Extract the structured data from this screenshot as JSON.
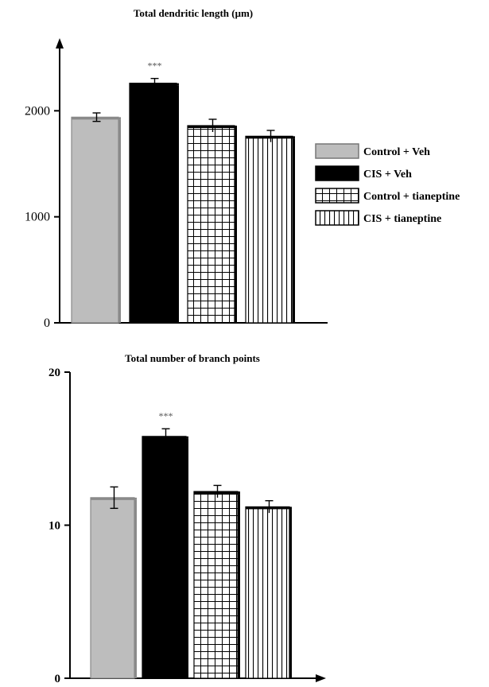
{
  "chart_data": [
    {
      "type": "bar",
      "title": "Total dendritic length (μm)",
      "categories": [
        "Control + Veh",
        "CIS + Veh",
        "Control + tianeptine",
        "CIS + tianeptine"
      ],
      "values": [
        1940,
        2260,
        1860,
        1760
      ],
      "errors": [
        40,
        45,
        60,
        55
      ],
      "annotations": [
        "",
        "***",
        "",
        ""
      ],
      "ylim": [
        0,
        2700
      ],
      "yticks": [
        0,
        1000,
        2000
      ],
      "xlabel": "",
      "ylabel": "",
      "legend": "right"
    },
    {
      "type": "bar",
      "title": "Total number of branch points",
      "categories": [
        "Control + Veh",
        "CIS + Veh",
        "Control + tianeptine",
        "CIS + tianeptine"
      ],
      "values": [
        11.8,
        15.8,
        12.2,
        11.2
      ],
      "errors": [
        0.7,
        0.5,
        0.4,
        0.4
      ],
      "annotations": [
        "",
        "***",
        "",
        ""
      ],
      "ylim": [
        0,
        20
      ],
      "yticks": [
        0,
        10,
        20
      ],
      "xlabel": "",
      "ylabel": ""
    }
  ],
  "legend": {
    "items": [
      {
        "label": "Control + Veh",
        "fill": "gray"
      },
      {
        "label": "CIS + Veh",
        "fill": "black"
      },
      {
        "label": "Control + tianeptine",
        "fill": "grid"
      },
      {
        "label": "CIS + tianeptine",
        "fill": "vlines"
      }
    ]
  },
  "colors": {
    "gray": "#bdbdbd",
    "black": "#000000",
    "pattern_bg": "#ffffff"
  }
}
